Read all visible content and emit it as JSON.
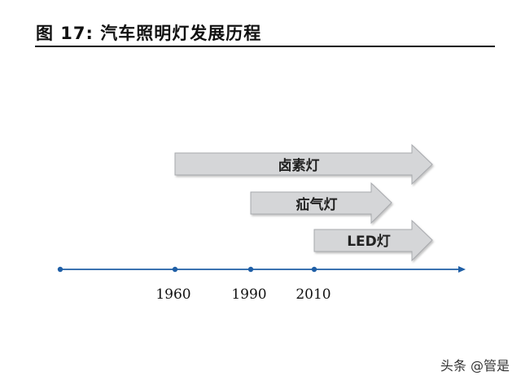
{
  "figure": {
    "title": "图  17:  汽车照明灯发展历程"
  },
  "timeline": {
    "ticks": [
      {
        "label": "1960"
      },
      {
        "label": "1990"
      },
      {
        "label": "2010"
      }
    ]
  },
  "eras": [
    {
      "label": "卤素灯",
      "start": "1960"
    },
    {
      "label": "疝气灯",
      "start": "1990"
    },
    {
      "label": "LED灯",
      "start": "2010"
    }
  ],
  "colors": {
    "axis": "#1f5fa6",
    "arrow_fill": "#d5d6d8",
    "arrow_stroke": "#a7a9ad"
  },
  "watermark": "头条 @管是"
}
